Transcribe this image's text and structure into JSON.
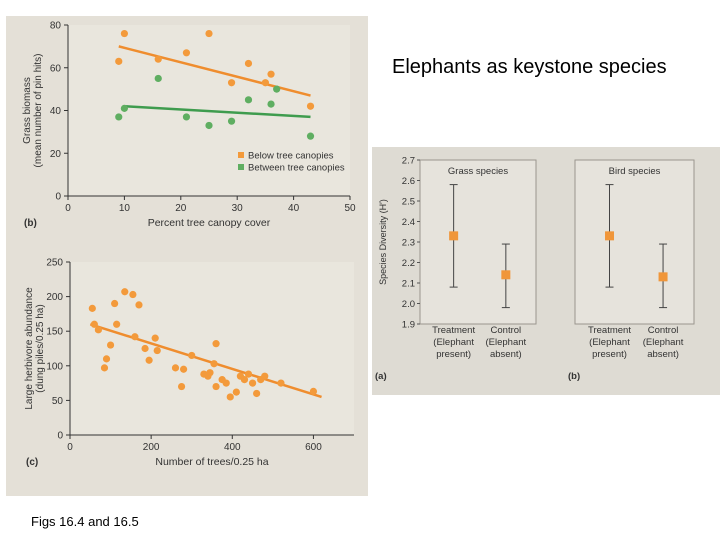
{
  "slide": {
    "title": "Elephants as keystone species",
    "caption": "Figs 16.4 and 16.5"
  },
  "colors": {
    "page_bg": "#ffffff",
    "scan_bg": "#e4e0d7",
    "plot_bg": "#e9e6dd",
    "orange": "#f39a3b",
    "green": "#5fae61",
    "orange_line": "#ef8d2e",
    "green_line": "#3f9c4e",
    "right_bg": "#dedbd3",
    "square": "#f0963a",
    "axis": "#333333"
  },
  "chart_data": [
    {
      "id": "grass",
      "panel_label": "(b)",
      "type": "scatter",
      "xlabel": "Percent tree canopy cover",
      "ylabel": [
        "Grass biomass",
        "(mean number of pin hits)"
      ],
      "xlim": [
        0,
        50
      ],
      "ylim": [
        0,
        80
      ],
      "xticks": [
        0,
        10,
        20,
        30,
        40,
        50
      ],
      "yticks": [
        0,
        20,
        40,
        60,
        80
      ],
      "legend_position": "bottom-right",
      "series": [
        {
          "name": "Below tree canopies",
          "color": "#f39a3b",
          "points": [
            [
              9,
              63
            ],
            [
              10,
              76
            ],
            [
              16,
              64
            ],
            [
              21,
              67
            ],
            [
              25,
              76
            ],
            [
              29,
              53
            ],
            [
              32,
              62
            ],
            [
              35,
              53
            ],
            [
              36,
              57
            ],
            [
              43,
              42
            ]
          ],
          "trend": [
            [
              9,
              70
            ],
            [
              43,
              47
            ]
          ]
        },
        {
          "name": "Between tree canopies",
          "color": "#5fae61",
          "points": [
            [
              9,
              37
            ],
            [
              10,
              41
            ],
            [
              16,
              55
            ],
            [
              21,
              37
            ],
            [
              25,
              33
            ],
            [
              29,
              35
            ],
            [
              32,
              45
            ],
            [
              36,
              43
            ],
            [
              37,
              50
            ],
            [
              43,
              28
            ]
          ],
          "trend": [
            [
              10,
              42
            ],
            [
              43,
              37
            ]
          ]
        }
      ]
    },
    {
      "id": "herbivore",
      "panel_label": "(c)",
      "type": "scatter",
      "xlabel": "Number of trees/0.25 ha",
      "ylabel": [
        "Large herbivore abundance",
        "(dung piles/0.25 ha)"
      ],
      "xlim": [
        0,
        700
      ],
      "ylim": [
        0,
        250
      ],
      "xticks": [
        0,
        200,
        400,
        600
      ],
      "yticks": [
        0,
        50,
        100,
        150,
        200,
        250
      ],
      "series": [
        {
          "name": "",
          "color": "#f39a3b",
          "points": [
            [
              55,
              183
            ],
            [
              60,
              160
            ],
            [
              70,
              152
            ],
            [
              85,
              97
            ],
            [
              90,
              110
            ],
            [
              100,
              130
            ],
            [
              110,
              190
            ],
            [
              115,
              160
            ],
            [
              135,
              207
            ],
            [
              155,
              203
            ],
            [
              160,
              142
            ],
            [
              170,
              188
            ],
            [
              185,
              125
            ],
            [
              195,
              108
            ],
            [
              210,
              140
            ],
            [
              215,
              122
            ],
            [
              260,
              97
            ],
            [
              275,
              70
            ],
            [
              280,
              95
            ],
            [
              300,
              115
            ],
            [
              330,
              88
            ],
            [
              340,
              85
            ],
            [
              345,
              90
            ],
            [
              355,
              103
            ],
            [
              360,
              132
            ],
            [
              360,
              70
            ],
            [
              375,
              80
            ],
            [
              385,
              75
            ],
            [
              395,
              55
            ],
            [
              410,
              62
            ],
            [
              420,
              85
            ],
            [
              430,
              80
            ],
            [
              440,
              88
            ],
            [
              450,
              75
            ],
            [
              460,
              60
            ],
            [
              470,
              80
            ],
            [
              480,
              85
            ],
            [
              520,
              75
            ],
            [
              600,
              63
            ]
          ],
          "trend": [
            [
              50,
              160
            ],
            [
              620,
              55
            ]
          ]
        }
      ]
    },
    {
      "id": "grass-species",
      "panel_label": "(a)",
      "type": "scatter",
      "subtitle": "Grass species",
      "ylabel": "Species Diversity (H′)",
      "ylim": [
        1.9,
        2.7
      ],
      "yticks": [
        1.9,
        2.0,
        2.1,
        2.2,
        2.3,
        2.4,
        2.5,
        2.6,
        2.7
      ],
      "categories": [
        [
          "Treatment",
          "(Elephant",
          "present)"
        ],
        [
          "Control",
          "(Elephant",
          "absent)"
        ]
      ],
      "values": [
        2.33,
        2.14
      ],
      "errors": [
        [
          2.08,
          2.58
        ],
        [
          1.98,
          2.29
        ]
      ]
    },
    {
      "id": "bird-species",
      "panel_label": "(b)",
      "type": "scatter",
      "subtitle": "Bird species",
      "ylim": [
        1.9,
        2.7
      ],
      "categories": [
        [
          "Treatment",
          "(Elephant",
          "present)"
        ],
        [
          "Control",
          "(Elephant",
          "absent)"
        ]
      ],
      "values": [
        2.33,
        2.13
      ],
      "errors": [
        [
          2.08,
          2.58
        ],
        [
          1.98,
          2.29
        ]
      ]
    }
  ]
}
